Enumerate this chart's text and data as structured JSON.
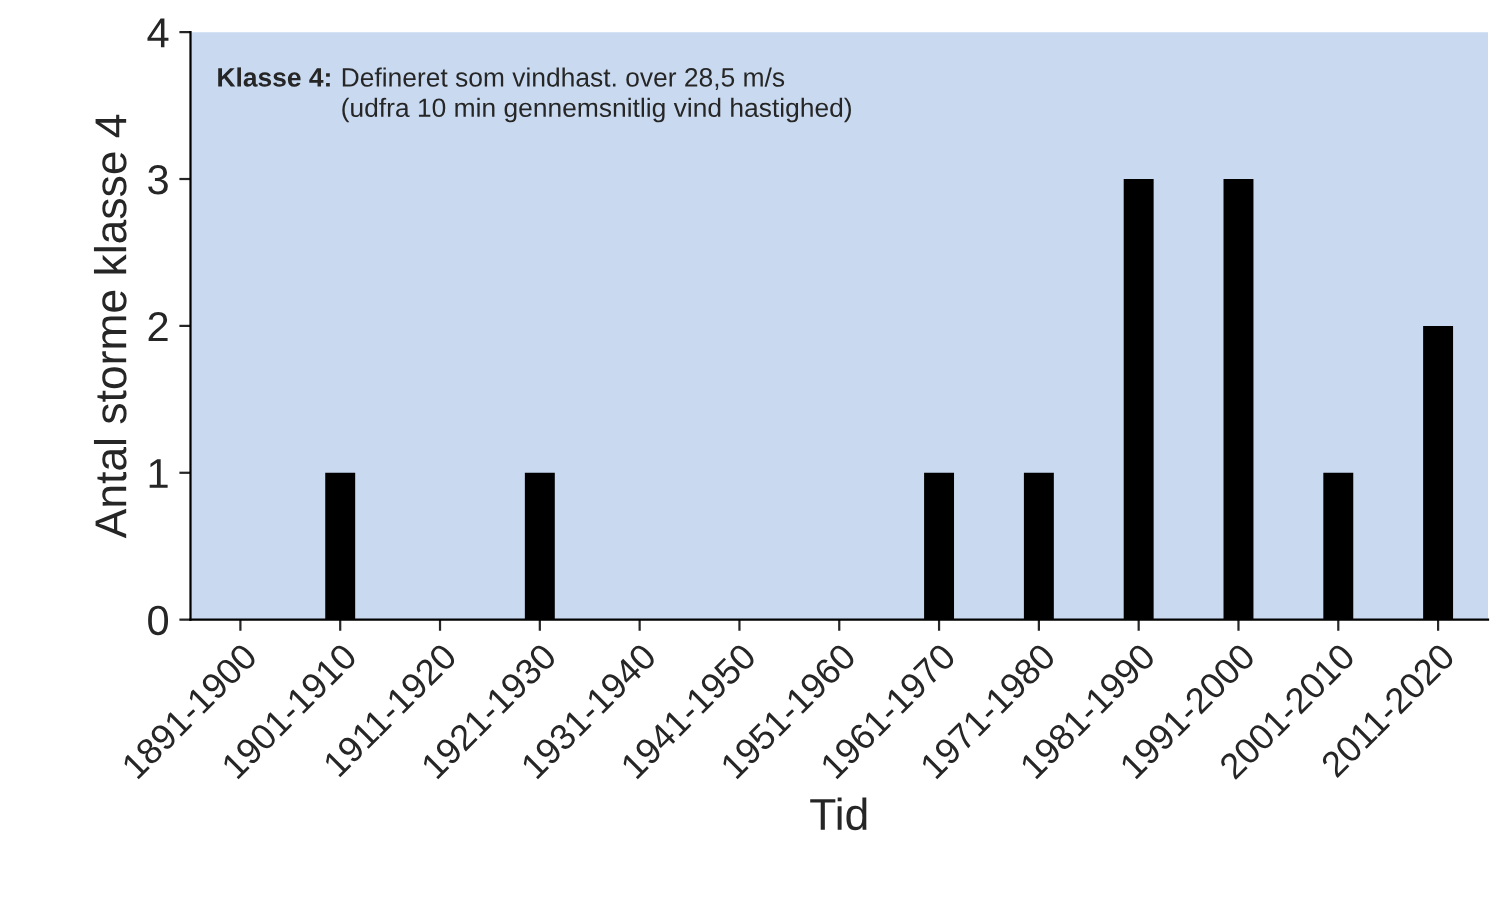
{
  "chart_data": {
    "type": "bar",
    "xlabel": "Tid",
    "ylabel": "Antal storme klasse 4",
    "categories": [
      "1891-1900",
      "1901-1910",
      "1911-1920",
      "1921-1930",
      "1931-1940",
      "1941-1950",
      "1951-1960",
      "1961-1970",
      "1971-1980",
      "1981-1990",
      "1991-2000",
      "2001-2010",
      "2011-2020"
    ],
    "values": [
      0,
      1,
      0,
      1,
      0,
      0,
      0,
      1,
      1,
      3,
      3,
      1,
      2
    ],
    "color": "#000000",
    "ylim": [
      0,
      4
    ],
    "yticks": [
      0,
      1,
      2,
      3,
      4
    ],
    "grid": false,
    "legend": false,
    "annotations": [
      "Klasse 4:",
      "Defineret som vindhast. over 28,5 m/s\n(udfra 10 min gennemsnitlig vind hastighed)"
    ]
  }
}
